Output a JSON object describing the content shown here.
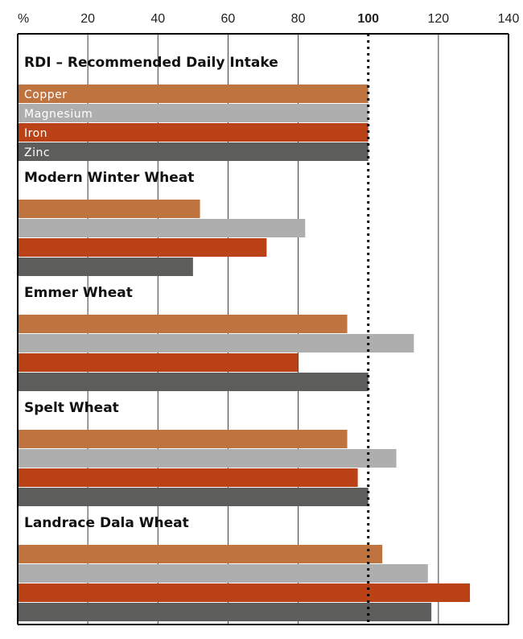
{
  "chart_data": {
    "type": "bar",
    "orientation": "horizontal",
    "unit_label": "%",
    "x_ticks": [
      20,
      40,
      60,
      80,
      100,
      120,
      140
    ],
    "xlim": [
      0,
      140
    ],
    "reference_line": 100,
    "grid": true,
    "categories": [
      "RDI – Recommended Daily Intake",
      "Modern Winter Wheat",
      "Emmer Wheat",
      "Spelt Wheat",
      "Landrace Dala Wheat"
    ],
    "series": [
      {
        "name": "Copper",
        "color": "#bf7440",
        "values": [
          100,
          52,
          94,
          94,
          104
        ]
      },
      {
        "name": "Magnesium",
        "color": "#aeaeae",
        "values": [
          100,
          82,
          113,
          108,
          117
        ]
      },
      {
        "name": "Iron",
        "color": "#bb4117",
        "values": [
          100,
          71,
          80,
          97,
          129
        ]
      },
      {
        "name": "Zinc",
        "color": "#5d5d5b",
        "values": [
          100,
          50,
          100,
          100,
          118
        ]
      }
    ]
  }
}
